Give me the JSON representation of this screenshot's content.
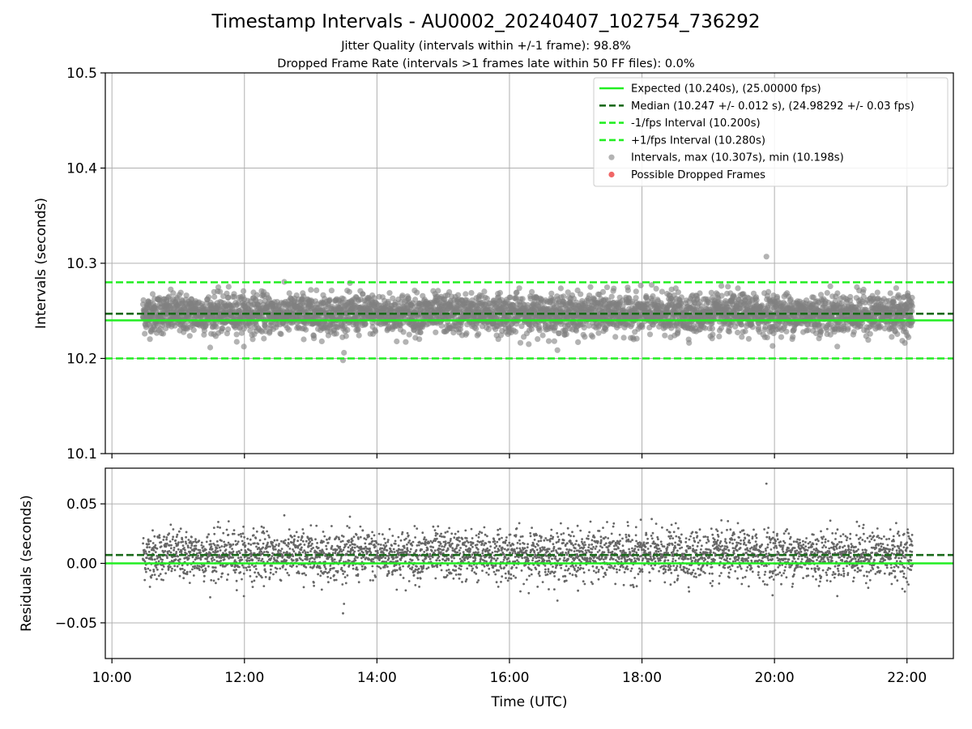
{
  "figure": {
    "title": "Timestamp Intervals - AU0002_20240407_102754_736292",
    "subtitle_1": "Jitter Quality (intervals within +/-1 frame): 98.8%",
    "subtitle_2": "Dropped Frame Rate (intervals >1 frames late within 50 FF files): 0.0%"
  },
  "colors": {
    "expected": "#22ee22",
    "median": "#1a6b1a",
    "fps_interval": "#22ee22",
    "points": "#808080",
    "dropped": "#ee5555",
    "grid": "#b0b0b0"
  },
  "chart_data": [
    {
      "type": "scatter",
      "panel": "intervals",
      "ylabel": "Intervals (seconds)",
      "ylim": [
        10.1,
        10.5
      ],
      "yticks": [
        10.1,
        10.2,
        10.3,
        10.4,
        10.5
      ],
      "ytick_labels": [
        "10.1",
        "10.2",
        "10.3",
        "10.4",
        "10.5"
      ],
      "x_range_hours": [
        9.9,
        22.7
      ],
      "grid": true,
      "legend_position": "top-right",
      "reference_lines": [
        {
          "label": "Expected (10.240s), (25.00000 fps)",
          "y": 10.24,
          "style": "solid",
          "color": "#22ee22"
        },
        {
          "label": "Median (10.247 +/- 0.012 s), (24.98292 +/- 0.03 fps)",
          "y": 10.247,
          "style": "dashed",
          "color": "#1a6b1a"
        },
        {
          "label": "-1/fps Interval (10.200s)",
          "y": 10.2,
          "style": "dashed",
          "color": "#22ee22"
        },
        {
          "label": "+1/fps Interval (10.280s)",
          "y": 10.28,
          "style": "dashed",
          "color": "#22ee22"
        }
      ],
      "series": [
        {
          "name": "Intervals, max (10.307s), min (10.198s)",
          "marker": "circle",
          "color": "#808080",
          "x_start": "10:28",
          "x_end": "22:05",
          "median": 10.247,
          "std": 0.012,
          "max": 10.307,
          "min": 10.198
        },
        {
          "name": "Possible Dropped Frames",
          "marker": "circle",
          "color": "#ee5555",
          "count": 0
        }
      ]
    },
    {
      "type": "scatter",
      "panel": "residuals",
      "xlabel": "Time (UTC)",
      "ylabel": "Residuals (seconds)",
      "ylim": [
        -0.08,
        0.08
      ],
      "yticks": [
        -0.05,
        0.0,
        0.05
      ],
      "ytick_labels": [
        "−0.05",
        "0.00",
        "0.05"
      ],
      "xticks": [
        "10:00",
        "12:00",
        "14:00",
        "16:00",
        "18:00",
        "20:00",
        "22:00"
      ],
      "grid": true,
      "reference_lines": [
        {
          "y": 0.0,
          "style": "solid",
          "color": "#22ee22"
        },
        {
          "y": 0.007,
          "style": "dashed",
          "color": "#1a6b1a"
        }
      ],
      "series": [
        {
          "marker": "dot",
          "color": "#666666",
          "max": 0.067,
          "min": -0.042
        }
      ]
    }
  ]
}
